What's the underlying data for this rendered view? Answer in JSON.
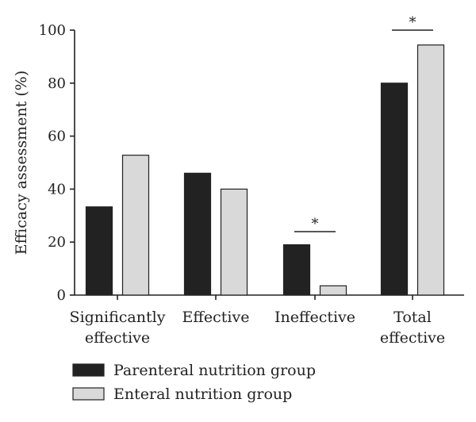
{
  "chart_data": {
    "type": "bar",
    "categories": [
      [
        "Significantly",
        "effective"
      ],
      [
        "Effective"
      ],
      [
        "Ineffective"
      ],
      [
        "Total",
        "effective"
      ]
    ],
    "series": [
      {
        "name": "Parenteral nutrition group",
        "values": [
          33.3,
          46.0,
          19.0,
          80.0
        ],
        "color": "#222222"
      },
      {
        "name": "Enteral nutrition group",
        "values": [
          52.8,
          40.0,
          3.5,
          94.4
        ],
        "color": "#d9d9d9"
      }
    ],
    "ylabel": "Efficacy assessment (%)",
    "xlabel": "",
    "title": "",
    "ylim": [
      0,
      100
    ],
    "yticks": [
      0,
      20,
      40,
      60,
      80,
      100
    ],
    "grid": false,
    "legend_position": "bottom-left",
    "significance": [
      {
        "category_index": 2,
        "marker": "*"
      },
      {
        "category_index": 3,
        "marker": "*"
      }
    ]
  }
}
